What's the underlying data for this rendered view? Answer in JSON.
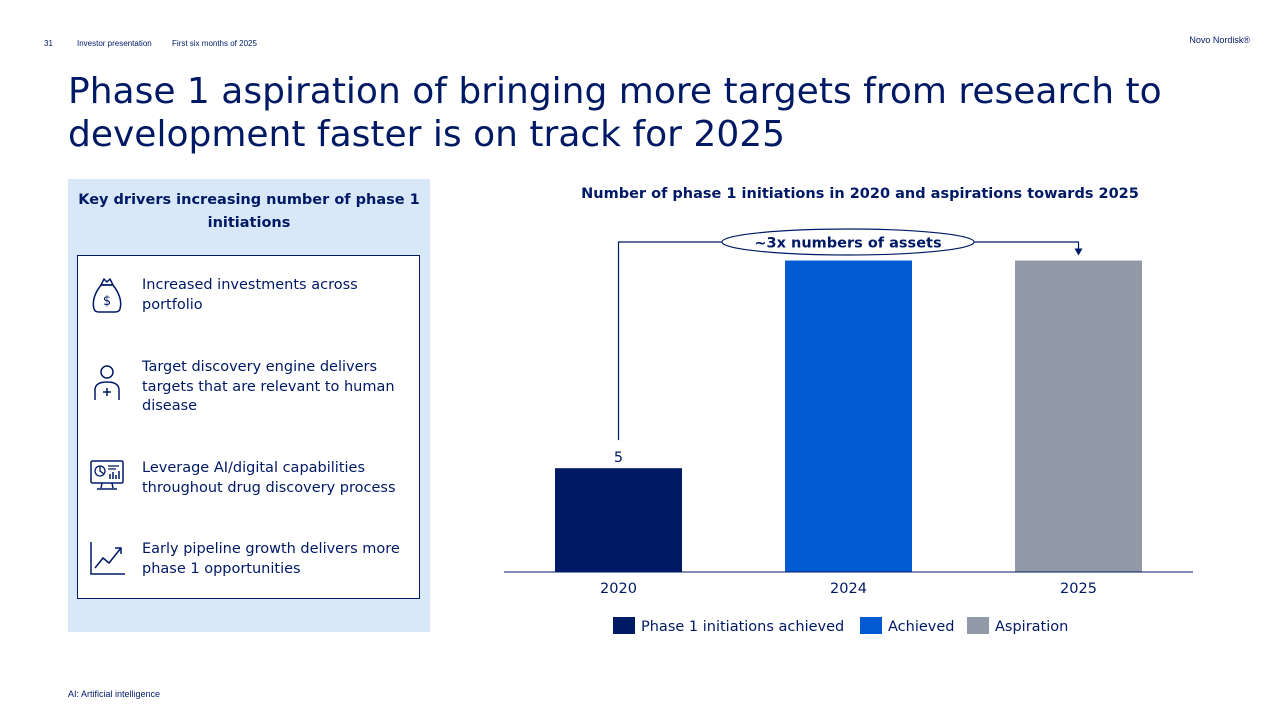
{
  "header": {
    "page_number": "31",
    "section": "Investor presentation",
    "period": "First six months of 2025",
    "brand": "Novo Nordisk®"
  },
  "title": "Phase 1 aspiration of bringing more targets from research to development faster is on track for 2025",
  "drivers": {
    "title": "Key drivers increasing number of phase 1 initiations",
    "items": [
      {
        "icon": "money-bag-icon",
        "text": "Increased investments across portfolio"
      },
      {
        "icon": "person-plus-icon",
        "text": "Target discovery engine delivers targets that are relevant to human disease"
      },
      {
        "icon": "monitor-analytics-icon",
        "text": "Leverage AI/digital capabilities throughout drug discovery process"
      },
      {
        "icon": "growth-chart-icon",
        "text": "Early pipeline growth delivers more phase 1 opportunities"
      }
    ]
  },
  "chart_data": {
    "type": "bar",
    "title": "Number of phase 1 initiations in 2020 and aspirations towards 2025",
    "categories": [
      "2020",
      "2024",
      "2025"
    ],
    "values": [
      5,
      15,
      15
    ],
    "data_labels": [
      "5",
      "",
      ""
    ],
    "bar_series": [
      "Phase 1 initiations achieved",
      "Achieved",
      "Aspiration"
    ],
    "series": [
      {
        "name": "Phase 1 initiations achieved",
        "color": "#001965"
      },
      {
        "name": "Achieved",
        "color": "#005ad2"
      },
      {
        "name": "Aspiration",
        "color": "#939aa7"
      }
    ],
    "annotation": "~3x numbers of assets",
    "ylim": [
      0,
      15.7
    ],
    "grid": false,
    "legend_position": "bottom"
  },
  "footnote": "AI: Artificial intelligence"
}
